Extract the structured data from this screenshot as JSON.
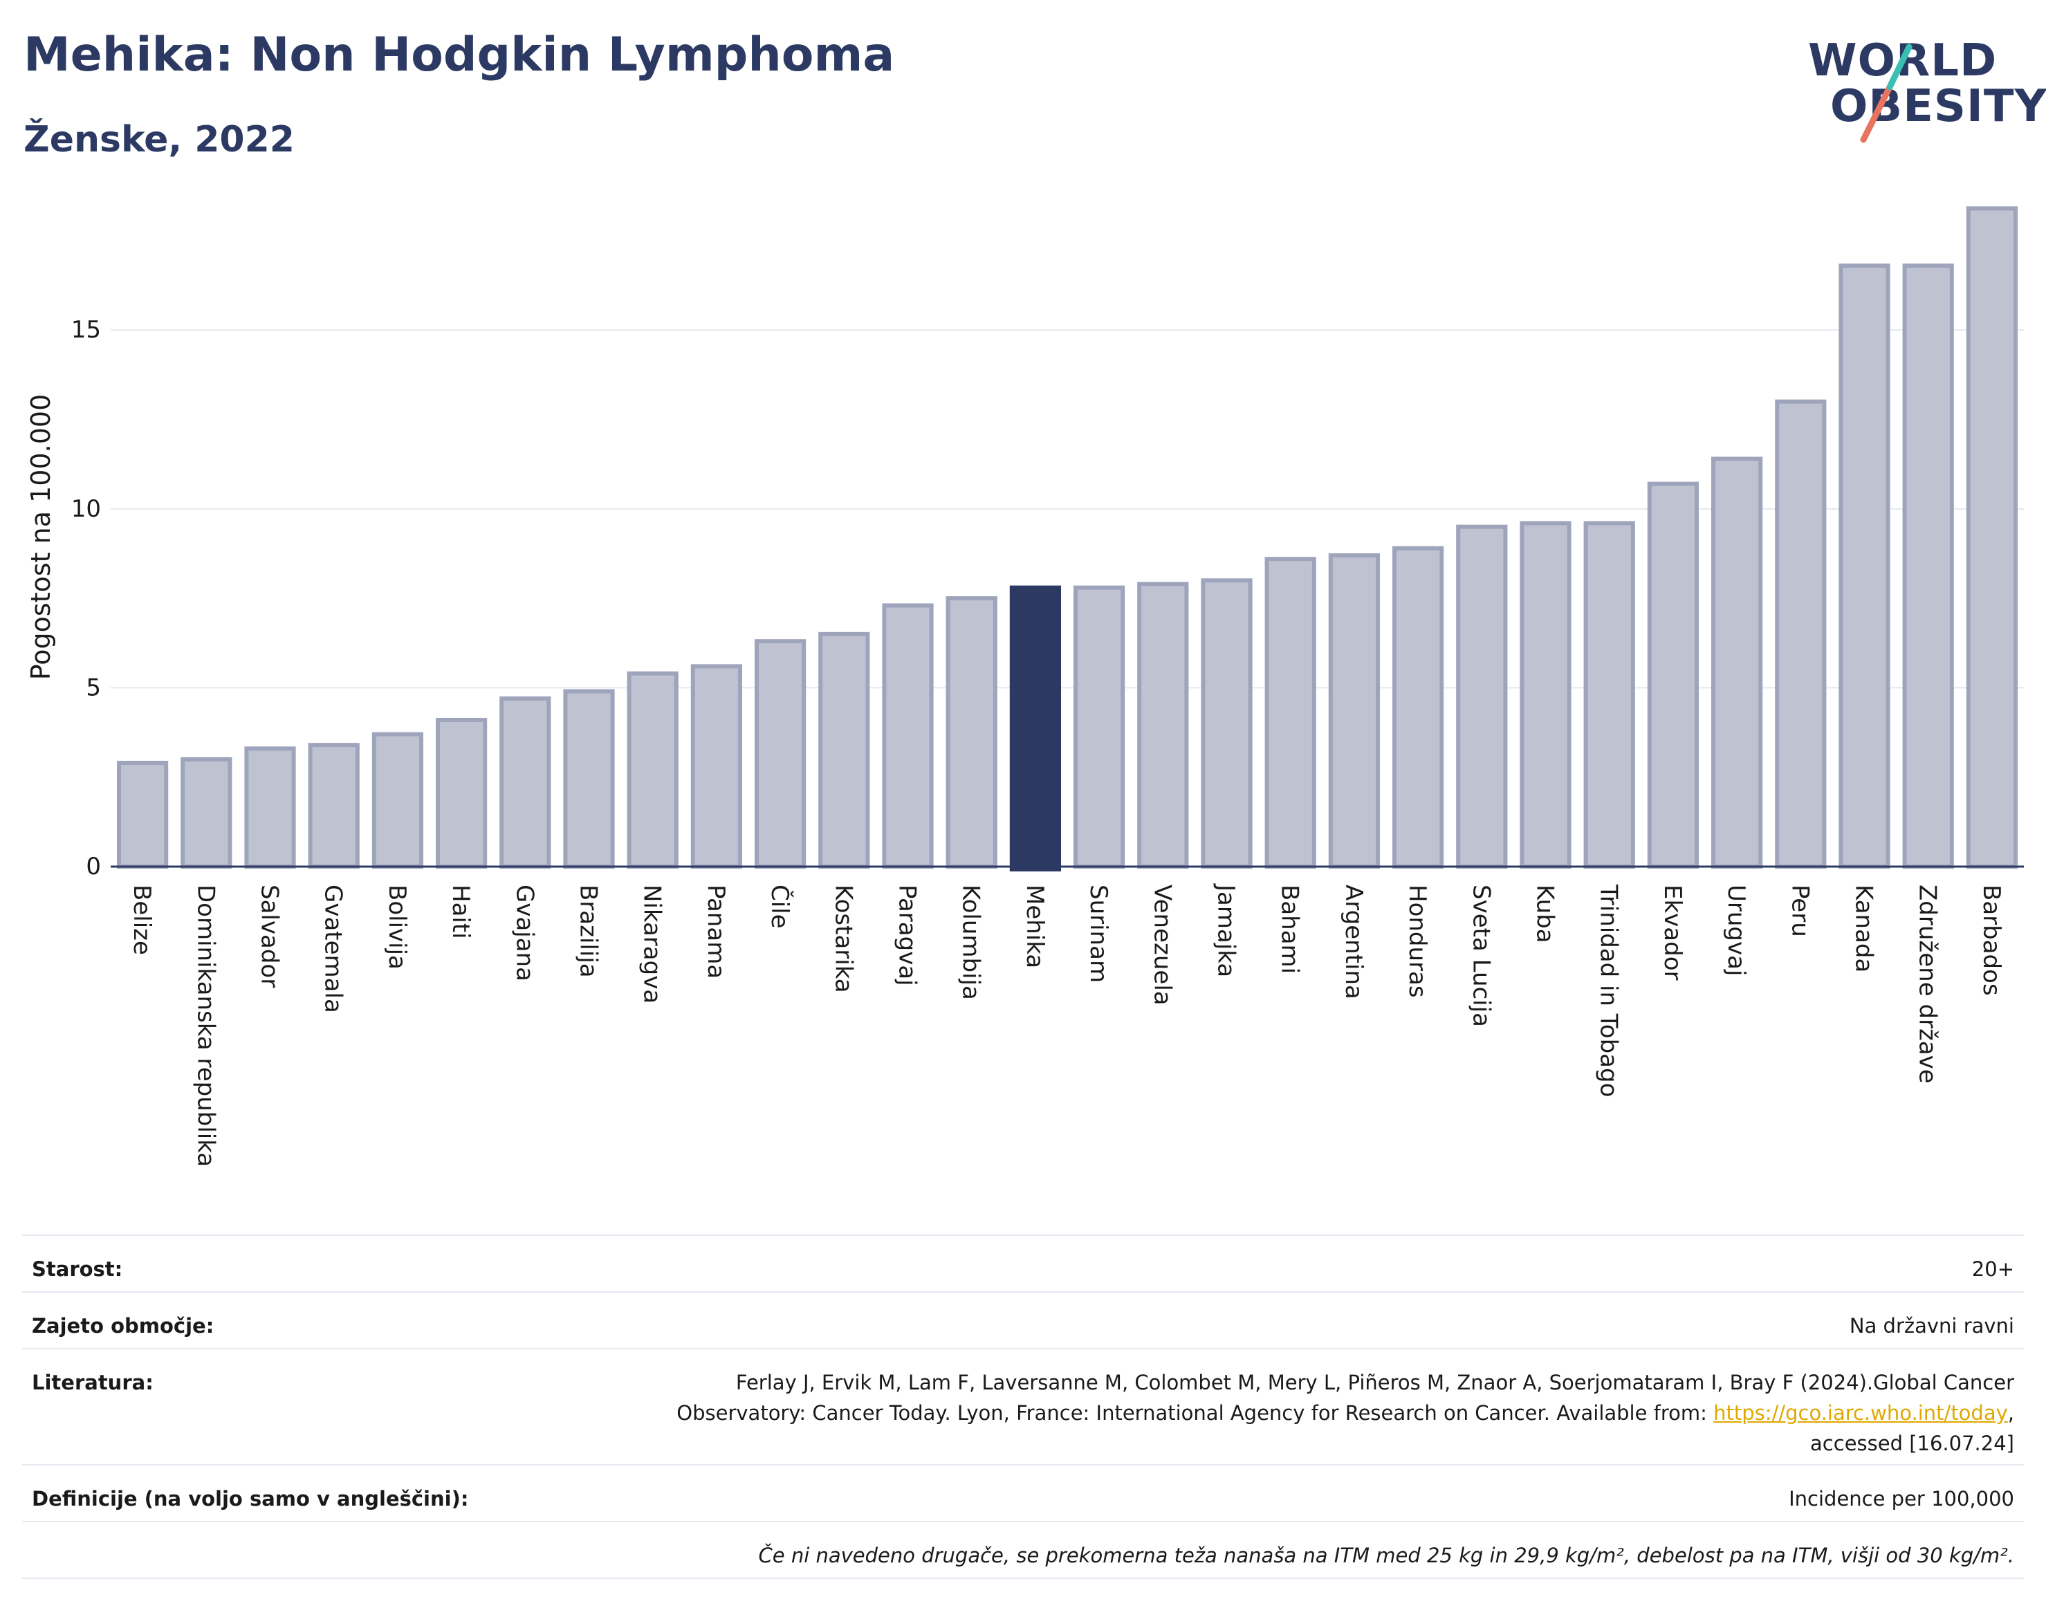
{
  "header": {
    "title": "Mehika: Non Hodgkin Lymphoma",
    "subtitle": "Ženske, 2022"
  },
  "logo": {
    "line1": "WORLD",
    "line2": "OBESITY"
  },
  "chart_data": {
    "type": "bar",
    "categories": [
      "Belize",
      "Dominikanska republika",
      "Salvador",
      "Gvatemala",
      "Bolivija",
      "Haiti",
      "Gvajana",
      "Brazilija",
      "Nikaragva",
      "Panama",
      "Čile",
      "Kostarika",
      "Paragvaj",
      "Kolumbija",
      "Mehika",
      "Surinam",
      "Venezuela",
      "Jamajka",
      "Bahami",
      "Argentina",
      "Honduras",
      "Sveta Lucija",
      "Kuba",
      "Trinidad in Tobago",
      "Ekvador",
      "Urugvaj",
      "Peru",
      "Kanada",
      "Združene države",
      "Barbados"
    ],
    "values": [
      2.9,
      3.0,
      3.3,
      3.4,
      3.7,
      4.1,
      4.7,
      4.9,
      5.4,
      5.6,
      6.3,
      6.5,
      7.3,
      7.5,
      7.8,
      7.8,
      7.9,
      8.0,
      8.6,
      8.7,
      8.9,
      9.5,
      9.6,
      9.6,
      10.7,
      11.4,
      13.0,
      16.8,
      16.8,
      18.4
    ],
    "highlight": "Mehika",
    "ylabel": "Pogostost na 100.000",
    "xlabel": "",
    "ylim": [
      0,
      19.2
    ],
    "yticks": [
      0,
      5,
      10,
      15
    ],
    "grid": true,
    "colors": {
      "bar": "#bfc3d1",
      "bar_edge": "#9ea4bb",
      "highlight": "#2c3a63",
      "grid": "#e6e8f0",
      "axis": "#2c3a63"
    }
  },
  "meta": {
    "age_label": "Starost:",
    "age_value": "20+",
    "area_label": "Zajeto območje:",
    "area_value": "Na državni ravni",
    "ref_label": "Literatura:",
    "ref_line1": "Ferlay J, Ervik M, Lam F, Laversanne M, Colombet M, Mery L, Piñeros M, Znaor A, Soerjomataram I, Bray F (2024).Global Cancer",
    "ref_line2": "Observatory: Cancer Today. Lyon, France: International Agency for Research on Cancer. Available from: ",
    "ref_link": "https://gco.iarc.who.int/today",
    "ref_line2_tail": ",",
    "ref_line3": "accessed [16.07.24]",
    "def_label": "Definicije (na voljo samo v angleščini):",
    "def_value": "Incidence per 100,000",
    "note": "Če ni navedeno drugače, se prekomerna teža nanaša na ITM med 25 kg in 29,9 kg/m², debelost pa na ITM, višji od 30 kg/m²."
  }
}
